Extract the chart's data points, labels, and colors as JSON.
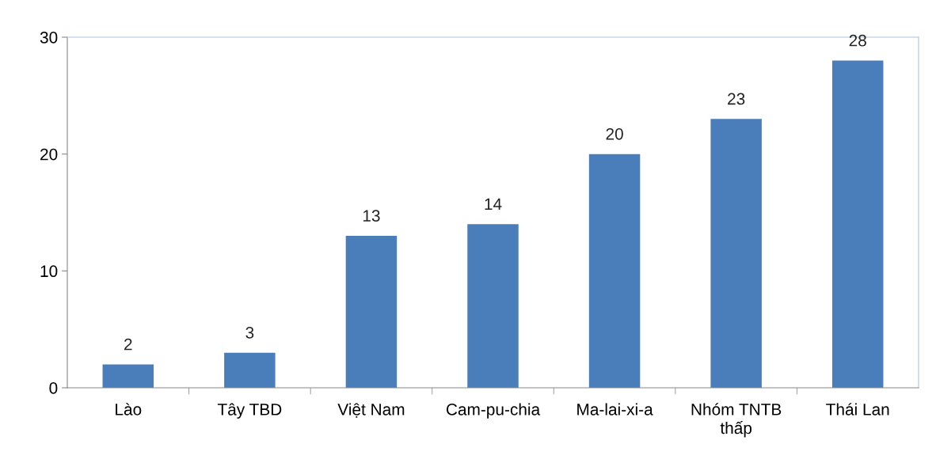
{
  "chart_data": {
    "type": "bar",
    "categories": [
      "Lào",
      "Tây TBD",
      "Việt Nam",
      "Cam-pu-chia",
      "Ma-lai-xi-a",
      "Nhóm TNTB\nthấp",
      "Thái Lan"
    ],
    "values": [
      2,
      3,
      13,
      14,
      20,
      23,
      28
    ],
    "color": "#4a7ebb",
    "ylim": [
      0,
      30
    ],
    "yticks": [
      0,
      10,
      20,
      30
    ],
    "grid": false,
    "data_labels": true
  }
}
